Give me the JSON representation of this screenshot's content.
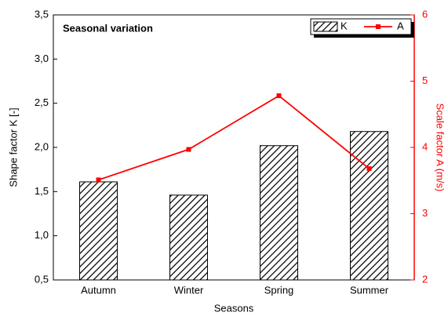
{
  "chart_data": {
    "type": "bar",
    "annotation": "Seasonal variation",
    "xlabel": "Seasons",
    "ylabel": "Shape factor K [-]",
    "y2label": "Scale factor A (m/s)",
    "categories": [
      "Autumn",
      "Winter",
      "Spring",
      "Summer"
    ],
    "series": [
      {
        "name": "K",
        "type": "bar",
        "color": "#000000",
        "values": [
          1.61,
          1.46,
          2.02,
          2.18
        ]
      },
      {
        "name": "A",
        "type": "line",
        "axis": "y2",
        "color": "#ff0000",
        "values": [
          3.51,
          3.97,
          4.78,
          3.68
        ]
      }
    ],
    "ylim": [
      0.5,
      3.5
    ],
    "yticks": [
      {
        "value": 0.5,
        "label": "0,5"
      },
      {
        "value": 1.0,
        "label": "1,0"
      },
      {
        "value": 1.5,
        "label": "1,5"
      },
      {
        "value": 2.0,
        "label": "2,0"
      },
      {
        "value": 2.5,
        "label": "2,5"
      },
      {
        "value": 3.0,
        "label": "3,0"
      },
      {
        "value": 3.5,
        "label": "3,5"
      }
    ],
    "y2lim": [
      2,
      6
    ],
    "y2ticks": [
      2,
      3,
      4,
      5,
      6
    ],
    "legend": "upper right"
  }
}
